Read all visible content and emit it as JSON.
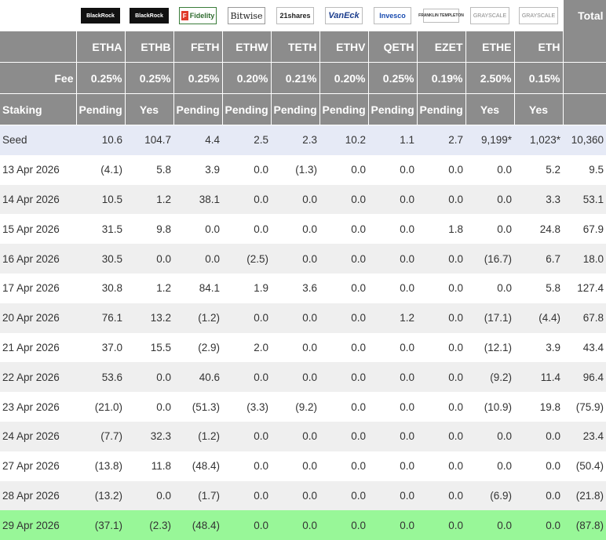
{
  "logos": [
    {
      "name": "BlackRock",
      "icon": "blackrock-logo"
    },
    {
      "name": "BlackRock",
      "icon": "blackrock-logo"
    },
    {
      "name": "Fidelity",
      "icon": "fidelity-logo"
    },
    {
      "name": "Bitwise",
      "icon": "bitwise-logo"
    },
    {
      "name": "21shares",
      "icon": "21shares-logo"
    },
    {
      "name": "VanEck",
      "icon": "vaneck-logo"
    },
    {
      "name": "Invesco",
      "icon": "invesco-logo"
    },
    {
      "name": "FRANKLIN TEMPLETON",
      "icon": "franklin-templeton-logo"
    },
    {
      "name": "GRAYSCALE",
      "icon": "grayscale-logo"
    },
    {
      "name": "GRAYSCALE",
      "icon": "grayscale-logo"
    }
  ],
  "total_label": "Total",
  "tickers": [
    "ETHA",
    "ETHB",
    "FETH",
    "ETHW",
    "TETH",
    "ETHV",
    "QETH",
    "EZET",
    "ETHE",
    "ETH"
  ],
  "fee": {
    "label": "Fee",
    "values": [
      "0.25%",
      "0.25%",
      "0.25%",
      "0.20%",
      "0.21%",
      "0.20%",
      "0.25%",
      "0.19%",
      "2.50%",
      "0.15%"
    ]
  },
  "staking": {
    "label": "Staking",
    "values": [
      "Pending",
      "Yes",
      "Pending",
      "Pending",
      "Pending",
      "Pending",
      "Pending",
      "Pending",
      "Yes",
      "Yes"
    ]
  },
  "rows": [
    {
      "date": "Seed",
      "values": [
        "10.6",
        "104.7",
        "4.4",
        "2.5",
        "2.3",
        "10.2",
        "1.1",
        "2.7",
        "9,199*",
        "1,023*"
      ],
      "total": "10,360"
    },
    {
      "date": "13 Apr 2026",
      "values": [
        "(4.1)",
        "5.8",
        "3.9",
        "0.0",
        "(1.3)",
        "0.0",
        "0.0",
        "0.0",
        "0.0",
        "5.2"
      ],
      "total": "9.5"
    },
    {
      "date": "14 Apr 2026",
      "values": [
        "10.5",
        "1.2",
        "38.1",
        "0.0",
        "0.0",
        "0.0",
        "0.0",
        "0.0",
        "0.0",
        "3.3"
      ],
      "total": "53.1"
    },
    {
      "date": "15 Apr 2026",
      "values": [
        "31.5",
        "9.8",
        "0.0",
        "0.0",
        "0.0",
        "0.0",
        "0.0",
        "1.8",
        "0.0",
        "24.8"
      ],
      "total": "67.9"
    },
    {
      "date": "16 Apr 2026",
      "values": [
        "30.5",
        "0.0",
        "0.0",
        "(2.5)",
        "0.0",
        "0.0",
        "0.0",
        "0.0",
        "(16.7)",
        "6.7"
      ],
      "total": "18.0"
    },
    {
      "date": "17 Apr 2026",
      "values": [
        "30.8",
        "1.2",
        "84.1",
        "1.9",
        "3.6",
        "0.0",
        "0.0",
        "0.0",
        "0.0",
        "5.8"
      ],
      "total": "127.4"
    },
    {
      "date": "20 Apr 2026",
      "values": [
        "76.1",
        "13.2",
        "(1.2)",
        "0.0",
        "0.0",
        "0.0",
        "1.2",
        "0.0",
        "(17.1)",
        "(4.4)"
      ],
      "total": "67.8"
    },
    {
      "date": "21 Apr 2026",
      "values": [
        "37.0",
        "15.5",
        "(2.9)",
        "2.0",
        "0.0",
        "0.0",
        "0.0",
        "0.0",
        "(12.1)",
        "3.9"
      ],
      "total": "43.4"
    },
    {
      "date": "22 Apr 2026",
      "values": [
        "53.6",
        "0.0",
        "40.6",
        "0.0",
        "0.0",
        "0.0",
        "0.0",
        "0.0",
        "(9.2)",
        "11.4"
      ],
      "total": "96.4"
    },
    {
      "date": "23 Apr 2026",
      "values": [
        "(21.0)",
        "0.0",
        "(51.3)",
        "(3.3)",
        "(9.2)",
        "0.0",
        "0.0",
        "0.0",
        "(10.9)",
        "19.8"
      ],
      "total": "(75.9)"
    },
    {
      "date": "24 Apr 2026",
      "values": [
        "(7.7)",
        "32.3",
        "(1.2)",
        "0.0",
        "0.0",
        "0.0",
        "0.0",
        "0.0",
        "0.0",
        "0.0"
      ],
      "total": "23.4"
    },
    {
      "date": "27 Apr 2026",
      "values": [
        "(13.8)",
        "11.8",
        "(48.4)",
        "0.0",
        "0.0",
        "0.0",
        "0.0",
        "0.0",
        "0.0",
        "0.0"
      ],
      "total": "(50.4)"
    },
    {
      "date": "28 Apr 2026",
      "values": [
        "(13.2)",
        "0.0",
        "(1.7)",
        "0.0",
        "0.0",
        "0.0",
        "0.0",
        "0.0",
        "(6.9)",
        "0.0"
      ],
      "total": "(21.8)"
    },
    {
      "date": "29 Apr 2026",
      "values": [
        "(37.1)",
        "(2.3)",
        "(48.4)",
        "0.0",
        "0.0",
        "0.0",
        "0.0",
        "0.0",
        "0.0",
        "0.0"
      ],
      "total": "(87.8)"
    }
  ],
  "colors": {
    "header_bg": "#8c8c8c",
    "header_text": "#ffffff",
    "negative": "#e02020",
    "seed_row": "#e6eaf6",
    "alt_row": "#efefef",
    "latest_row": "#98f798"
  }
}
